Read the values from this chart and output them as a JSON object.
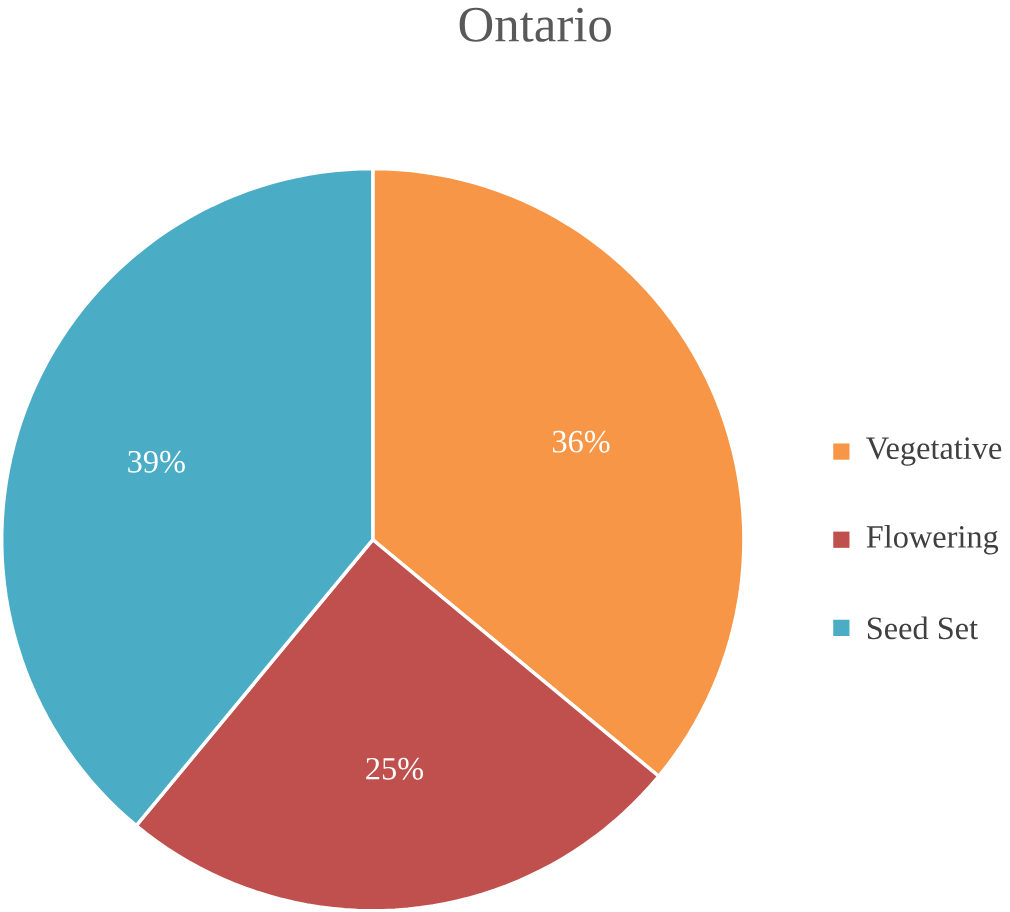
{
  "chart_data": {
    "type": "pie",
    "title": "Ontario",
    "categories": [
      "Vegetative",
      "Flowering",
      "Seed Set"
    ],
    "values": [
      36,
      25,
      39
    ],
    "colors": [
      "#f79646",
      "#c0504d",
      "#4bacc6"
    ],
    "value_labels": [
      "36%",
      "25%",
      "39%"
    ],
    "legend": "right"
  }
}
